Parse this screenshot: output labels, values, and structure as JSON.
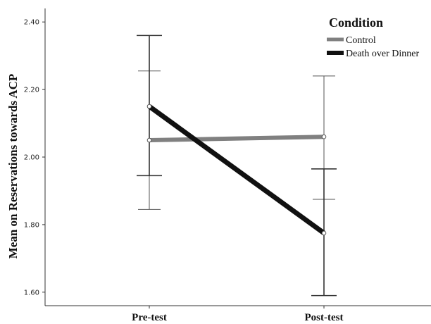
{
  "chart_data": {
    "type": "line",
    "categories": [
      "Pre-test",
      "Post-test"
    ],
    "ylabel": "Mean on Reservations towards ACP",
    "xlabel": "",
    "ylim": [
      1.56,
      2.44
    ],
    "yticks": [
      "1.60",
      "1.80",
      "2.00",
      "2.20",
      "2.40"
    ],
    "grid": false,
    "legend": {
      "title": "Condition",
      "placement": "top-right"
    },
    "series": [
      {
        "name": "Control",
        "color": "#808080",
        "values": [
          2.05,
          2.06
        ],
        "error_low": [
          1.845,
          1.875
        ],
        "error_high": [
          2.255,
          2.24
        ]
      },
      {
        "name": "Death over Dinner",
        "color": "#111111",
        "values": [
          2.15,
          1.775
        ],
        "error_low": [
          1.945,
          1.59
        ],
        "error_high": [
          2.36,
          1.965
        ]
      }
    ]
  }
}
